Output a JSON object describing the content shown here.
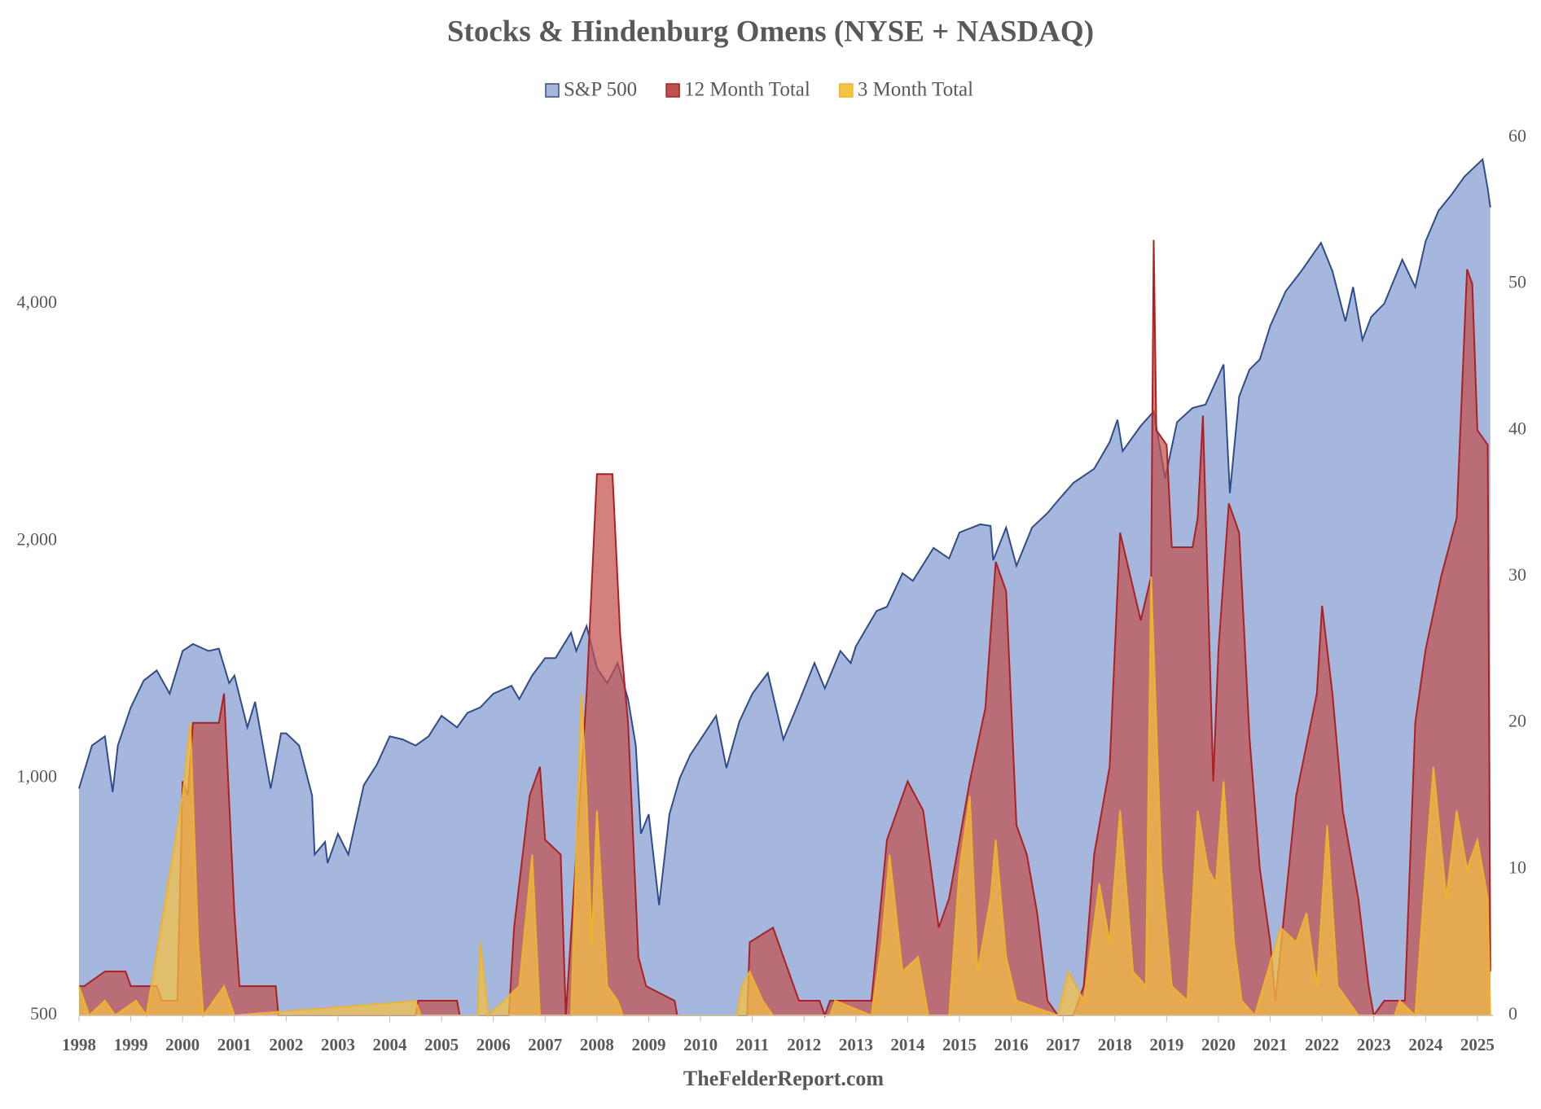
{
  "chart_data": {
    "type": "area",
    "title": "Stocks & Hindenburg Omens (NYSE + NASDAQ)",
    "source": "TheFelderReport.com",
    "xlim": [
      1998,
      2025.3
    ],
    "xticks": [
      1998,
      1999,
      2000,
      2001,
      2002,
      2003,
      2004,
      2005,
      2006,
      2007,
      2008,
      2009,
      2010,
      2011,
      2012,
      2013,
      2014,
      2015,
      2016,
      2017,
      2018,
      2019,
      2020,
      2021,
      2022,
      2023,
      2024,
      2025
    ],
    "log_y": true,
    "ylim": [
      500,
      6500
    ],
    "yticks": [
      500,
      {
        "value": 1000,
        "label": "1,000"
      },
      {
        "value": 2000,
        "label": "2,000"
      },
      {
        "value": 4000,
        "label": "4,000"
      }
    ],
    "y2lim": [
      0,
      60
    ],
    "y2ticks": [
      0,
      10,
      20,
      30,
      40,
      50,
      60
    ],
    "legend": "top",
    "series": [
      {
        "name": "S&P 500",
        "color": "#a5b7dd",
        "line_color": "#2e4c8e",
        "axis": "y",
        "x": [
          1998.0,
          1998.25,
          1998.5,
          1998.65,
          1998.75,
          1999.0,
          1999.25,
          1999.5,
          1999.75,
          2000.0,
          2000.2,
          2000.5,
          2000.7,
          2000.9,
          2001.0,
          2001.25,
          2001.4,
          2001.7,
          2001.9,
          2002.0,
          2002.25,
          2002.5,
          2002.55,
          2002.75,
          2002.8,
          2003.0,
          2003.2,
          2003.5,
          2003.75,
          2004.0,
          2004.25,
          2004.5,
          2004.75,
          2005.0,
          2005.3,
          2005.5,
          2005.75,
          2006.0,
          2006.35,
          2006.5,
          2006.75,
          2007.0,
          2007.2,
          2007.5,
          2007.6,
          2007.8,
          2008.0,
          2008.2,
          2008.4,
          2008.6,
          2008.75,
          2008.85,
          2009.0,
          2009.2,
          2009.4,
          2009.6,
          2009.8,
          2010.0,
          2010.3,
          2010.5,
          2010.75,
          2011.0,
          2011.3,
          2011.6,
          2011.9,
          2012.2,
          2012.4,
          2012.7,
          2012.9,
          2013.0,
          2013.4,
          2013.6,
          2013.9,
          2014.1,
          2014.5,
          2014.8,
          2015.0,
          2015.4,
          2015.6,
          2015.65,
          2015.9,
          2016.1,
          2016.4,
          2016.7,
          2016.9,
          2017.2,
          2017.6,
          2017.9,
          2018.05,
          2018.15,
          2018.5,
          2018.75,
          2018.97,
          2019.2,
          2019.5,
          2019.75,
          2020.1,
          2020.22,
          2020.4,
          2020.6,
          2020.8,
          2021.0,
          2021.3,
          2021.6,
          2021.98,
          2022.2,
          2022.45,
          2022.6,
          2022.78,
          2022.95,
          2023.2,
          2023.55,
          2023.8,
          2024.0,
          2024.25,
          2024.5,
          2024.75,
          2025.1,
          2025.2,
          2025.25
        ],
        "values": [
          970,
          1100,
          1130,
          960,
          1100,
          1230,
          1330,
          1370,
          1280,
          1450,
          1480,
          1450,
          1460,
          1320,
          1350,
          1160,
          1250,
          970,
          1140,
          1140,
          1100,
          950,
          800,
          830,
          780,
          850,
          800,
          980,
          1040,
          1130,
          1120,
          1100,
          1130,
          1200,
          1160,
          1210,
          1230,
          1280,
          1310,
          1260,
          1350,
          1420,
          1420,
          1530,
          1450,
          1560,
          1380,
          1320,
          1400,
          1260,
          1100,
          850,
          900,
          690,
          900,
          1000,
          1070,
          1120,
          1200,
          1030,
          1180,
          1280,
          1360,
          1120,
          1250,
          1400,
          1300,
          1450,
          1400,
          1470,
          1630,
          1650,
          1820,
          1780,
          1960,
          1900,
          2050,
          2100,
          2090,
          1890,
          2080,
          1860,
          2080,
          2170,
          2250,
          2370,
          2470,
          2670,
          2850,
          2600,
          2800,
          2920,
          2400,
          2830,
          2950,
          2980,
          3350,
          2300,
          3050,
          3300,
          3400,
          3750,
          4150,
          4400,
          4780,
          4400,
          3800,
          4200,
          3600,
          3850,
          4000,
          4550,
          4200,
          4800,
          5250,
          5500,
          5800,
          6100,
          5600,
          5300
        ]
      },
      {
        "name": "12 Month Total",
        "color": "#c0504d",
        "line_color": "#b01f1f",
        "axis": "y2",
        "x": [
          1998.0,
          1998.1,
          1998.5,
          1998.9,
          1999.0,
          1999.5,
          1999.6,
          1999.9,
          2000.0,
          2000.1,
          2000.2,
          2000.7,
          2000.8,
          2001.0,
          2001.1,
          2001.8,
          2001.85,
          2004.5,
          2004.55,
          2005.3,
          2005.35,
          2006.3,
          2006.4,
          2006.7,
          2006.9,
          2007.0,
          2007.3,
          2007.4,
          2007.8,
          2008.0,
          2008.3,
          2008.45,
          2008.6,
          2008.8,
          2008.95,
          2009.5,
          2009.55,
          2010.9,
          2010.95,
          2011.4,
          2011.6,
          2011.9,
          2012.3,
          2012.4,
          2012.5,
          2013.3,
          2013.6,
          2014.0,
          2014.3,
          2014.6,
          2014.8,
          2015.2,
          2015.5,
          2015.7,
          2015.9,
          2016.1,
          2016.3,
          2016.5,
          2016.7,
          2016.9,
          2017.2,
          2017.4,
          2017.6,
          2017.9,
          2018.0,
          2018.1,
          2018.3,
          2018.5,
          2018.7,
          2018.75,
          2018.8,
          2019.0,
          2019.1,
          2019.5,
          2019.6,
          2019.7,
          2019.9,
          2020.0,
          2020.2,
          2020.4,
          2020.6,
          2020.8,
          2021.0,
          2021.1,
          2021.3,
          2021.5,
          2021.9,
          2022.0,
          2022.2,
          2022.4,
          2022.7,
          2022.9,
          2023.0,
          2023.2,
          2023.6,
          2023.8,
          2024.0,
          2024.3,
          2024.6,
          2024.8,
          2024.9,
          2025.0,
          2025.2,
          2025.25
        ],
        "values": [
          2,
          2,
          3,
          3,
          2,
          2,
          1,
          1,
          16,
          15,
          20,
          20,
          22,
          7,
          2,
          2,
          0,
          0,
          1,
          1,
          0,
          0,
          6,
          15,
          17,
          12,
          11,
          0,
          22,
          37,
          37,
          26,
          20,
          4,
          2,
          1,
          0,
          0,
          5,
          6,
          4,
          1,
          1,
          0,
          1,
          1,
          12,
          16,
          14,
          6,
          8,
          16,
          21,
          31,
          29,
          13,
          11,
          7,
          1,
          0,
          0,
          2,
          11,
          17,
          25,
          33,
          30,
          27,
          30,
          53,
          40,
          39,
          32,
          32,
          34,
          41,
          16,
          25,
          35,
          33,
          19,
          10,
          5,
          1,
          8,
          15,
          22,
          28,
          22,
          14,
          8,
          2,
          0,
          1,
          1,
          20,
          25,
          30,
          34,
          51,
          50,
          40,
          39,
          3
        ]
      },
      {
        "name": "3 Month Total",
        "color": "#f5c242",
        "line_color": "#f0b323",
        "axis": "y2",
        "x": [
          1998.0,
          1998.2,
          1998.5,
          1998.7,
          1999.1,
          1999.3,
          2000.0,
          2000.15,
          2000.3,
          2000.4,
          2000.8,
          2001.0,
          2004.5,
          2004.6,
          2005.7,
          2005.75,
          2005.9,
          2006.5,
          2006.75,
          2006.9,
          2007.5,
          2007.7,
          2007.8,
          2007.9,
          2008.0,
          2008.2,
          2008.4,
          2008.5,
          2010.7,
          2010.8,
          2010.95,
          2011.2,
          2011.4,
          2012.5,
          2012.6,
          2013.3,
          2013.5,
          2013.65,
          2013.9,
          2014.2,
          2014.4,
          2014.8,
          2015.0,
          2015.2,
          2015.35,
          2015.6,
          2015.7,
          2015.9,
          2016.1,
          2016.9,
          2017.1,
          2017.4,
          2017.7,
          2017.9,
          2018.1,
          2018.35,
          2018.6,
          2018.7,
          2018.9,
          2019.1,
          2019.4,
          2019.6,
          2019.8,
          2019.95,
          2020.1,
          2020.3,
          2020.45,
          2020.7,
          2021.2,
          2021.5,
          2021.7,
          2021.9,
          2022.1,
          2022.3,
          2022.5,
          2022.7,
          2022.9,
          2023.4,
          2023.5,
          2023.8,
          2024.0,
          2024.15,
          2024.4,
          2024.6,
          2024.8,
          2025.0,
          2025.2,
          2025.25
        ],
        "values": [
          2,
          0,
          1,
          0,
          1,
          0,
          15,
          20,
          5,
          0,
          2,
          0,
          1,
          0,
          0,
          5,
          0,
          2,
          11,
          0,
          0,
          22,
          15,
          5,
          14,
          2,
          1,
          0,
          0,
          2,
          3,
          1,
          0,
          0,
          1,
          0,
          5,
          11,
          3,
          4,
          0,
          0,
          10,
          15,
          3,
          8,
          12,
          4,
          1,
          0,
          3,
          1,
          9,
          5,
          14,
          3,
          2,
          30,
          10,
          2,
          1,
          14,
          10,
          9,
          16,
          5,
          1,
          0,
          6,
          5,
          7,
          2,
          13,
          2,
          1,
          0,
          0,
          0,
          1,
          0,
          10,
          17,
          8,
          14,
          10,
          12,
          8,
          0
        ]
      }
    ]
  }
}
